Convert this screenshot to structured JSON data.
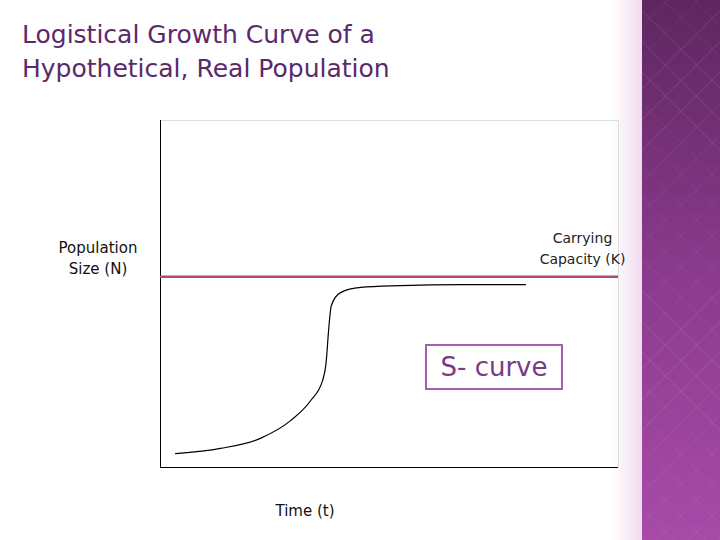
{
  "chart_data": {
    "type": "line",
    "title": "Logistical Growth Curve of a Hypothetical, Real Population",
    "x_label": "Time (t)",
    "y_label": "Population Size (N)",
    "x": [
      3.3,
      13.1,
      21.8,
      28.4,
      32.8,
      35.4,
      36.2,
      36.7,
      37.3,
      39.3,
      43.7,
      52.4,
      65.5,
      79.7
    ],
    "values": [
      4.0,
      5.5,
      8.4,
      13.5,
      19.3,
      25.1,
      30.8,
      39.5,
      46.7,
      50.4,
      51.9,
      52.4,
      52.7,
      52.7
    ],
    "color": "#000000",
    "xlim": [
      0,
      100
    ],
    "ylim": [
      0,
      100
    ],
    "xticks": [],
    "yticks": [],
    "tick_labels": false,
    "grid": false,
    "carrying_capacity": {
      "value": 55,
      "label": "Carrying Capacity (K)",
      "color": "#b3476c"
    },
    "annotations": [
      "S- curve"
    ]
  }
}
